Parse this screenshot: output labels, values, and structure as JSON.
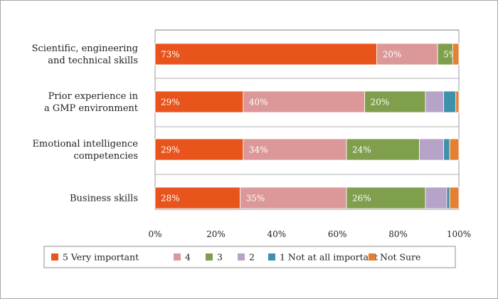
{
  "chart_data": {
    "type": "bar",
    "orientation": "horizontal",
    "stacked": true,
    "categories": [
      [
        "Scientific, engineering",
        "and technical skills"
      ],
      [
        "Prior experience in",
        "a GMP environment"
      ],
      [
        "Emotional intelligence",
        "competencies"
      ],
      [
        "Business skills"
      ]
    ],
    "series": [
      {
        "name": "5 Very important",
        "color": "#e8541c",
        "values": [
          73,
          29,
          29,
          28
        ],
        "labels": [
          "73%",
          "29%",
          "29%",
          "28%"
        ]
      },
      {
        "name": "4",
        "color": "#dc9898",
        "values": [
          20,
          40,
          34,
          35
        ],
        "labels": [
          "20%",
          "40%",
          "34%",
          "35%"
        ]
      },
      {
        "name": "3",
        "color": "#7f9f4c",
        "values": [
          5,
          20,
          24,
          26
        ],
        "labels": [
          "5%",
          "20%",
          "24%",
          "26%"
        ]
      },
      {
        "name": "2",
        "color": "#b6a3c7",
        "values": [
          0,
          6,
          8,
          7
        ],
        "labels": [
          "",
          "",
          "",
          ""
        ]
      },
      {
        "name": "1 Not at all important",
        "color": "#3f90aa",
        "values": [
          0,
          4,
          2,
          1
        ],
        "labels": [
          "",
          "",
          "",
          ""
        ]
      },
      {
        "name": "Not Sure",
        "color": "#e57f33",
        "values": [
          2,
          1,
          3,
          3
        ],
        "labels": [
          "",
          "",
          "",
          ""
        ]
      }
    ],
    "x_ticks": [
      "0%",
      "20%",
      "40%",
      "60%",
      "80%",
      "100%"
    ],
    "xlim": [
      0,
      100
    ],
    "grid": true,
    "legend_position": "bottom"
  }
}
